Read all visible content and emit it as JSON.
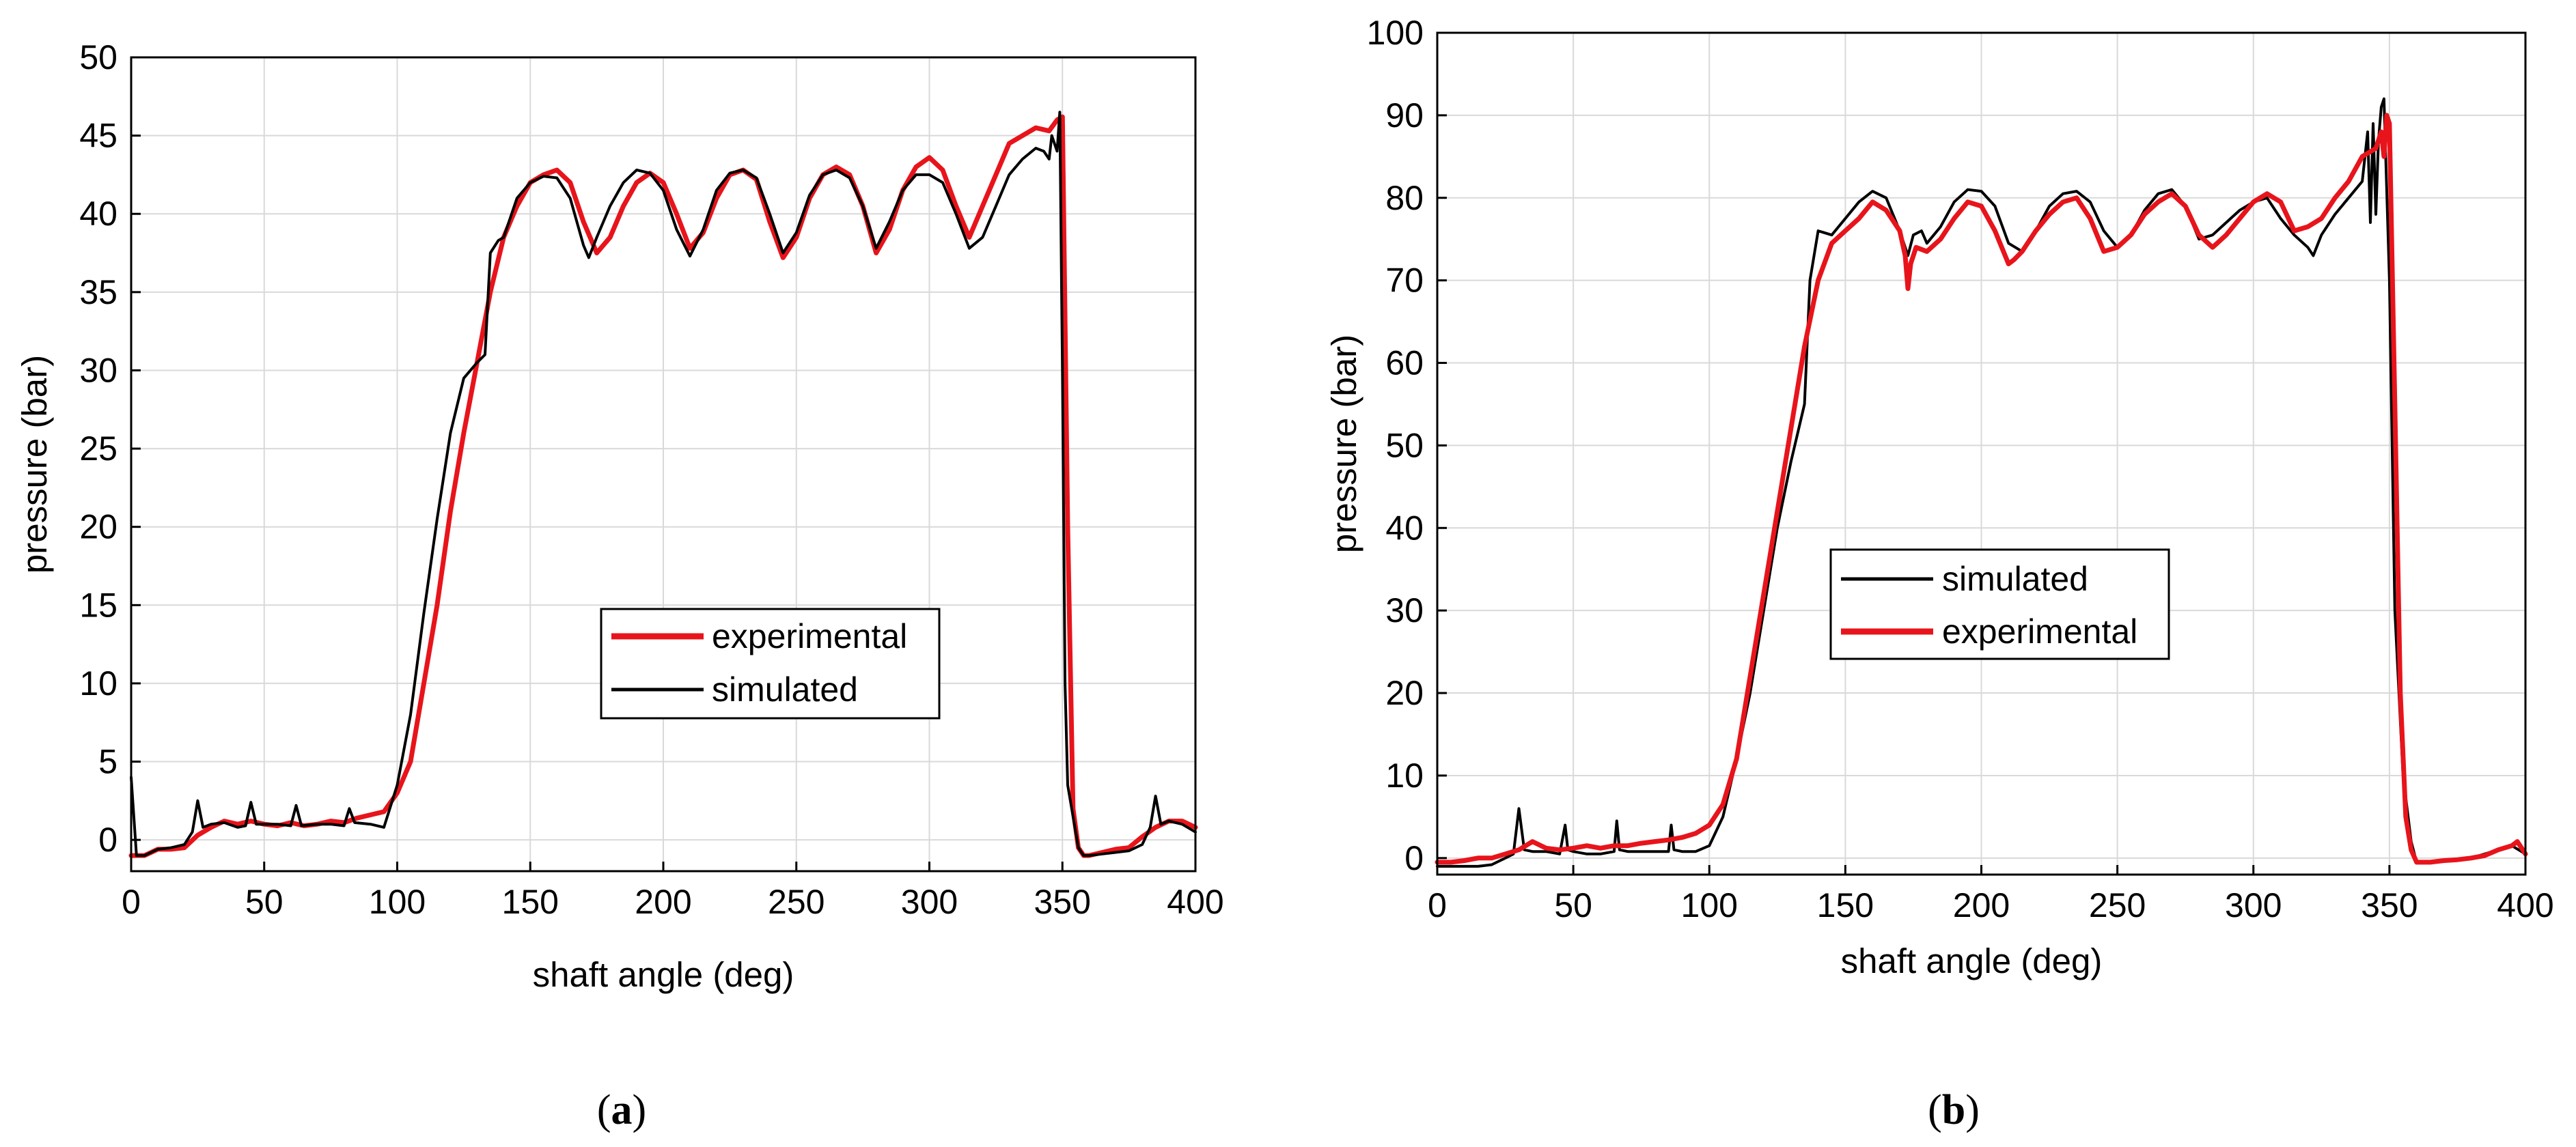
{
  "chart_data": [
    {
      "panel": "a",
      "type": "line",
      "caption_open": "(",
      "caption_letter": "a",
      "caption_close": ")",
      "xlabel": "shaft angle (deg)",
      "ylabel": "pressure (bar)",
      "xlim": [
        0,
        400
      ],
      "ylim": [
        -2,
        50
      ],
      "xticks": [
        0,
        50,
        100,
        150,
        200,
        250,
        300,
        350,
        400
      ],
      "yticks": [
        0,
        5,
        10,
        15,
        20,
        25,
        30,
        35,
        40,
        45,
        50
      ],
      "grid": true,
      "legend_position": "center-right",
      "legend_order": [
        "experimental",
        "simulated"
      ],
      "series": [
        {
          "name": "experimental",
          "color": "#e8141b",
          "x": [
            0,
            5,
            10,
            15,
            20,
            25,
            30,
            35,
            40,
            45,
            50,
            55,
            60,
            65,
            70,
            75,
            80,
            85,
            90,
            95,
            100,
            105,
            110,
            115,
            120,
            125,
            130,
            135,
            140,
            145,
            150,
            155,
            160,
            165,
            170,
            175,
            180,
            185,
            190,
            195,
            200,
            205,
            210,
            215,
            220,
            225,
            230,
            235,
            240,
            245,
            250,
            255,
            260,
            265,
            270,
            275,
            280,
            285,
            290,
            295,
            300,
            305,
            310,
            315,
            320,
            325,
            330,
            335,
            340,
            345,
            348,
            350,
            352,
            354,
            356,
            358,
            360,
            365,
            370,
            375,
            380,
            385,
            390,
            395,
            400
          ],
          "y": [
            -1.0,
            -1.0,
            -0.6,
            -0.6,
            -0.5,
            0.3,
            0.8,
            1.2,
            1.0,
            1.2,
            1.0,
            0.9,
            1.1,
            0.9,
            1.0,
            1.2,
            1.1,
            1.4,
            1.6,
            1.8,
            3.0,
            5.0,
            10.0,
            15.0,
            21.0,
            26.0,
            30.5,
            35.0,
            38.5,
            40.5,
            42.0,
            42.5,
            42.8,
            42.0,
            39.5,
            37.5,
            38.5,
            40.5,
            42.0,
            42.6,
            42.0,
            40.0,
            37.8,
            38.8,
            41.0,
            42.5,
            42.8,
            42.2,
            39.5,
            37.2,
            38.5,
            41.0,
            42.5,
            43.0,
            42.5,
            40.5,
            37.5,
            39.0,
            41.5,
            43.0,
            43.6,
            42.8,
            40.5,
            38.5,
            40.5,
            42.5,
            44.5,
            45.0,
            45.5,
            45.3,
            46.0,
            46.2,
            20.0,
            2.0,
            -0.5,
            -1.0,
            -1.0,
            -0.8,
            -0.6,
            -0.5,
            0.2,
            0.8,
            1.2,
            1.2,
            0.8
          ]
        },
        {
          "name": "simulated",
          "color": "#000000",
          "x": [
            0,
            2,
            5,
            10,
            15,
            20,
            23,
            25,
            27,
            30,
            35,
            40,
            43,
            45,
            47,
            50,
            55,
            60,
            62,
            64,
            70,
            75,
            80,
            82,
            84,
            90,
            95,
            100,
            105,
            110,
            115,
            120,
            125,
            130,
            133,
            135,
            138,
            140,
            145,
            150,
            155,
            160,
            165,
            170,
            172,
            175,
            180,
            185,
            190,
            195,
            200,
            205,
            210,
            215,
            220,
            225,
            230,
            235,
            240,
            245,
            250,
            255,
            260,
            265,
            270,
            275,
            280,
            285,
            290,
            295,
            300,
            305,
            310,
            315,
            320,
            325,
            330,
            335,
            340,
            343,
            345,
            346,
            348,
            349,
            350,
            351,
            352,
            354,
            356,
            358,
            360,
            365,
            370,
            375,
            380,
            383,
            385,
            387,
            390,
            395,
            400
          ],
          "y": [
            4.0,
            -1.0,
            -1.0,
            -0.6,
            -0.5,
            -0.3,
            0.5,
            2.5,
            0.8,
            1.0,
            1.1,
            0.8,
            0.9,
            2.4,
            1.0,
            1.0,
            1.0,
            0.9,
            2.2,
            0.9,
            1.0,
            1.0,
            0.9,
            2.0,
            1.1,
            1.0,
            0.8,
            3.5,
            8.0,
            14.5,
            20.5,
            26.0,
            29.5,
            30.5,
            31.0,
            37.5,
            38.3,
            38.5,
            41.0,
            42.0,
            42.4,
            42.3,
            41.0,
            38.0,
            37.2,
            38.5,
            40.5,
            42.0,
            42.8,
            42.6,
            41.5,
            39.0,
            37.3,
            39.0,
            41.5,
            42.6,
            42.8,
            42.3,
            40.0,
            37.5,
            38.8,
            41.2,
            42.5,
            42.8,
            42.3,
            40.5,
            37.8,
            39.5,
            41.5,
            42.5,
            42.5,
            42.0,
            40.0,
            37.8,
            38.5,
            40.5,
            42.5,
            43.5,
            44.2,
            44.0,
            43.5,
            45.0,
            44.0,
            46.5,
            30.0,
            10.0,
            3.5,
            1.5,
            -0.5,
            -1.0,
            -1.0,
            -0.9,
            -0.8,
            -0.7,
            -0.3,
            0.8,
            2.8,
            1.0,
            1.2,
            1.0,
            0.5
          ]
        }
      ]
    },
    {
      "panel": "b",
      "type": "line",
      "caption_open": "(",
      "caption_letter": "b",
      "caption_close": ")",
      "xlabel": "shaft angle (deg)",
      "ylabel": "pressure (bar)",
      "xlim": [
        0,
        400
      ],
      "ylim": [
        -2,
        100
      ],
      "xticks": [
        0,
        50,
        100,
        150,
        200,
        250,
        300,
        350,
        400
      ],
      "yticks": [
        0,
        10,
        20,
        30,
        40,
        50,
        60,
        70,
        80,
        90,
        100
      ],
      "grid": true,
      "legend_position": "center-left",
      "legend_order": [
        "simulated",
        "experimental"
      ],
      "series": [
        {
          "name": "simulated",
          "color": "#000000",
          "x": [
            0,
            5,
            10,
            15,
            20,
            25,
            28,
            30,
            32,
            35,
            40,
            45,
            47,
            48,
            50,
            55,
            60,
            65,
            66,
            67,
            70,
            75,
            80,
            85,
            86,
            87,
            90,
            95,
            100,
            105,
            110,
            115,
            120,
            125,
            130,
            135,
            137,
            140,
            145,
            150,
            155,
            160,
            165,
            170,
            173,
            175,
            178,
            180,
            185,
            190,
            195,
            200,
            205,
            210,
            215,
            220,
            225,
            230,
            235,
            240,
            245,
            250,
            255,
            260,
            265,
            270,
            275,
            280,
            285,
            290,
            295,
            300,
            305,
            310,
            315,
            320,
            322,
            325,
            330,
            335,
            340,
            342,
            343,
            344,
            345,
            346,
            347,
            348,
            350,
            352,
            355,
            358,
            360,
            365,
            370,
            375,
            380,
            385,
            390,
            395,
            400
          ],
          "y": [
            -1.0,
            -1.0,
            -1.0,
            -1.0,
            -0.8,
            0.0,
            0.5,
            6.0,
            1.0,
            0.8,
            0.8,
            0.5,
            4.0,
            1.0,
            0.8,
            0.5,
            0.5,
            0.8,
            4.5,
            1.0,
            0.8,
            0.8,
            0.8,
            0.8,
            4.0,
            1.0,
            0.8,
            0.8,
            1.5,
            5.0,
            12.0,
            20.0,
            30.0,
            40.0,
            48.0,
            55.0,
            70.0,
            76.0,
            75.5,
            77.5,
            79.5,
            80.8,
            80.0,
            76.0,
            73.0,
            75.5,
            76.0,
            74.5,
            76.5,
            79.5,
            81.0,
            80.8,
            79.0,
            74.5,
            73.5,
            76.0,
            79.0,
            80.5,
            80.8,
            79.5,
            76.0,
            74.0,
            75.5,
            78.5,
            80.5,
            81.0,
            79.0,
            75.0,
            75.5,
            77.0,
            78.5,
            79.5,
            80.0,
            77.5,
            75.5,
            74.0,
            73.0,
            75.5,
            78.0,
            80.0,
            82.0,
            88.0,
            77.0,
            89.0,
            78.0,
            87.0,
            91.0,
            92.0,
            70.0,
            30.0,
            10.0,
            2.0,
            -0.5,
            -0.5,
            -0.3,
            -0.2,
            0.0,
            0.5,
            1.0,
            1.5,
            0.5
          ]
        },
        {
          "name": "experimental",
          "color": "#e8141b",
          "x": [
            0,
            5,
            10,
            15,
            20,
            25,
            30,
            35,
            40,
            45,
            50,
            55,
            60,
            65,
            70,
            75,
            80,
            85,
            90,
            95,
            100,
            105,
            110,
            115,
            120,
            125,
            130,
            135,
            140,
            145,
            150,
            155,
            160,
            165,
            170,
            172,
            173,
            174,
            176,
            180,
            185,
            190,
            195,
            200,
            205,
            210,
            212,
            215,
            220,
            225,
            230,
            235,
            240,
            245,
            250,
            255,
            260,
            265,
            270,
            275,
            280,
            285,
            290,
            295,
            300,
            305,
            310,
            315,
            320,
            325,
            330,
            335,
            340,
            345,
            347,
            348,
            349,
            350,
            352,
            354,
            356,
            358,
            360,
            365,
            370,
            375,
            380,
            385,
            390,
            395,
            397,
            400
          ],
          "y": [
            -0.5,
            -0.5,
            -0.3,
            0.0,
            0.0,
            0.5,
            1.0,
            2.0,
            1.2,
            1.0,
            1.2,
            1.5,
            1.2,
            1.5,
            1.5,
            1.8,
            2.0,
            2.2,
            2.5,
            3.0,
            4.0,
            6.5,
            12.0,
            22.0,
            32.0,
            42.0,
            52.0,
            62.0,
            70.0,
            74.5,
            76.0,
            77.5,
            79.5,
            78.5,
            76.0,
            73.0,
            69.0,
            72.0,
            74.0,
            73.5,
            75.0,
            77.5,
            79.5,
            79.0,
            76.0,
            72.0,
            72.5,
            73.5,
            76.0,
            78.0,
            79.5,
            80.0,
            77.5,
            73.5,
            74.0,
            75.5,
            78.0,
            79.5,
            80.5,
            79.0,
            75.5,
            74.0,
            75.5,
            77.5,
            79.5,
            80.5,
            79.5,
            76.0,
            76.5,
            77.5,
            80.0,
            82.0,
            85.0,
            86.0,
            88.0,
            85.0,
            90.0,
            89.0,
            55.0,
            20.0,
            5.0,
            1.0,
            -0.5,
            -0.5,
            -0.3,
            -0.2,
            0.0,
            0.3,
            1.0,
            1.5,
            2.0,
            0.5
          ]
        }
      ]
    }
  ]
}
